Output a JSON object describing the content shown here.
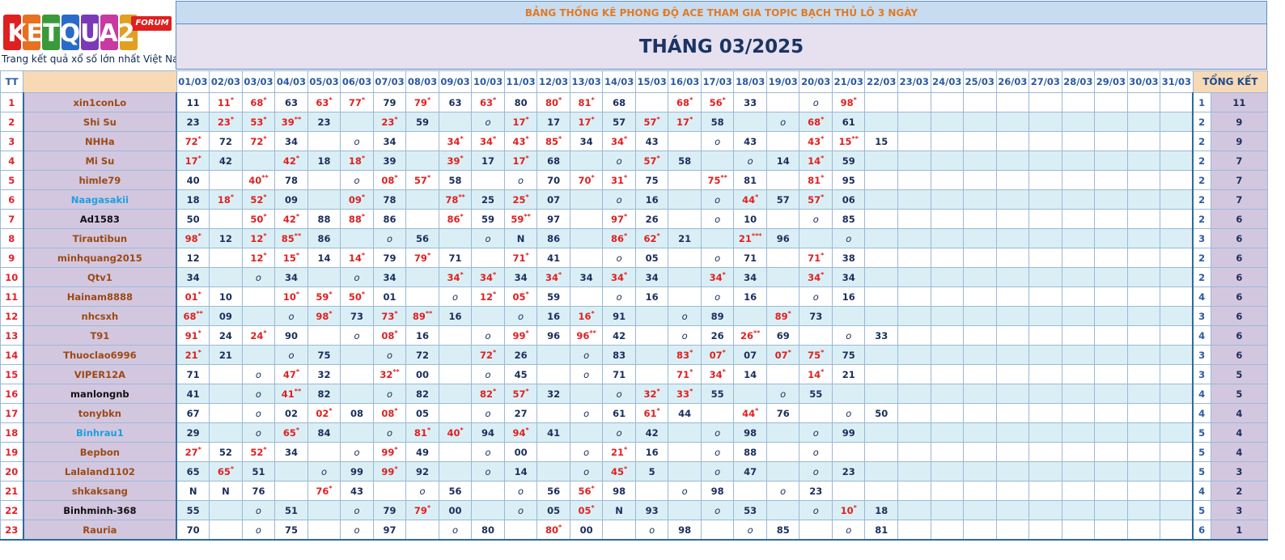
{
  "logo": {
    "brand": "KETQUA2",
    "badge": "FORUM",
    "tagline": "Trang kết quả xổ số lớn nhất Việt Nam"
  },
  "header": {
    "title": "BẢNG THỐNG KÊ PHONG ĐỘ ACE THAM GIA TOPIC BẠCH THỦ LÔ 3 NGÀY",
    "month": "THÁNG 03/2025"
  },
  "columns": {
    "tt": "TT",
    "name": "",
    "total": "TỔNG KẾT",
    "days": [
      "01/03",
      "02/03",
      "03/03",
      "04/03",
      "05/03",
      "06/03",
      "07/03",
      "08/03",
      "09/03",
      "10/03",
      "11/03",
      "12/03",
      "13/03",
      "14/03",
      "15/03",
      "16/03",
      "17/03",
      "18/03",
      "19/03",
      "20/03",
      "21/03",
      "22/03",
      "23/03",
      "24/03",
      "25/03",
      "26/03",
      "27/03",
      "28/03",
      "29/03",
      "30/03",
      "31/03"
    ]
  },
  "rows": [
    {
      "tt": "1",
      "name": "xin1conLo",
      "color": "brown",
      "cells": [
        "11",
        "11*",
        "68*",
        "63",
        "63*",
        "77*",
        "79",
        "79*",
        "63",
        "63*",
        "80",
        "80*",
        "81*",
        "68",
        "",
        "68*",
        "56*",
        "33",
        "",
        "o",
        "98*"
      ],
      "tk": [
        "1",
        "11"
      ]
    },
    {
      "tt": "2",
      "name": "Shi Su",
      "color": "brown",
      "cells": [
        "23",
        "23*",
        "53*",
        "39**",
        "23",
        "",
        "23*",
        "59",
        "",
        "o",
        "17*",
        "17",
        "17*",
        "57",
        "57*",
        "17*",
        "58",
        "",
        "o",
        "68*",
        "61"
      ],
      "tk": [
        "2",
        "9"
      ]
    },
    {
      "tt": "3",
      "name": "NHHa",
      "color": "brown",
      "cells": [
        "72*",
        "72",
        "72*",
        "34",
        "",
        "o",
        "34",
        "",
        "34*",
        "34*",
        "43*",
        "85*",
        "34",
        "34*",
        "43",
        "",
        "o",
        "43",
        "",
        "43*",
        "15**",
        "15"
      ],
      "tk": [
        "2",
        "9"
      ]
    },
    {
      "tt": "4",
      "name": "Mi Su",
      "color": "brown",
      "cells": [
        "17*",
        "42",
        "",
        "42*",
        "18",
        "18*",
        "39",
        "",
        "39*",
        "17",
        "17*",
        "68",
        "",
        "o",
        "57*",
        "58",
        "",
        "o",
        "14",
        "14*",
        "59"
      ],
      "tk": [
        "2",
        "7"
      ]
    },
    {
      "tt": "5",
      "name": "himle79",
      "color": "brown",
      "cells": [
        "40",
        "",
        "40**",
        "78",
        "",
        "o",
        "08*",
        "57*",
        "58",
        "",
        "o",
        "70",
        "70*",
        "31*",
        "75",
        "",
        "75**",
        "81",
        "",
        "81*",
        "95"
      ],
      "tk": [
        "2",
        "7"
      ]
    },
    {
      "tt": "6",
      "name": "Naagasakii",
      "color": "blue",
      "cells": [
        "18",
        "18*",
        "52*",
        "09",
        "",
        "09*",
        "78",
        "",
        "78**",
        "25",
        "25*",
        "07",
        "",
        "o",
        "16",
        "",
        "o",
        "44*",
        "57",
        "57*",
        "06"
      ],
      "tk": [
        "2",
        "7"
      ]
    },
    {
      "tt": "7",
      "name": "Ad1583",
      "color": "black",
      "cells": [
        "50",
        "",
        "50*",
        "42*",
        "88",
        "88*",
        "86",
        "",
        "86*",
        "59",
        "59**",
        "97",
        "",
        "97*",
        "26",
        "",
        "o",
        "10",
        "",
        "o",
        "85"
      ],
      "tk": [
        "2",
        "6"
      ]
    },
    {
      "tt": "8",
      "name": "Tirautibun",
      "color": "brown",
      "cells": [
        "98*",
        "12",
        "12*",
        "85**",
        "86",
        "",
        "o",
        "56",
        "",
        "o",
        "N",
        "86",
        "",
        "86*",
        "62*",
        "21",
        "",
        "21***",
        "96",
        "",
        "o"
      ],
      "tk": [
        "3",
        "6"
      ]
    },
    {
      "tt": "9",
      "name": "minhquang2015",
      "color": "brown",
      "cells": [
        "12",
        "",
        "12*",
        "15*",
        "14",
        "14*",
        "79",
        "79*",
        "71",
        "",
        "71*",
        "41",
        "",
        "o",
        "05",
        "",
        "o",
        "71",
        "",
        "71*",
        "38"
      ],
      "tk": [
        "2",
        "6"
      ]
    },
    {
      "tt": "10",
      "name": "Qtv1",
      "color": "brown",
      "cells": [
        "34",
        "",
        "o",
        "34",
        "",
        "o",
        "34",
        "",
        "34*",
        "34*",
        "34",
        "34*",
        "34",
        "34*",
        "34",
        "",
        "34*",
        "34",
        "",
        "34*",
        "34"
      ],
      "tk": [
        "2",
        "6"
      ]
    },
    {
      "tt": "11",
      "name": "Hainam8888",
      "color": "brown",
      "cells": [
        "01*",
        "10",
        "",
        "10*",
        "59*",
        "50*",
        "01",
        "",
        "o",
        "12*",
        "05*",
        "59",
        "",
        "o",
        "16",
        "",
        "o",
        "16",
        "",
        "o",
        "16"
      ],
      "tk": [
        "4",
        "6"
      ]
    },
    {
      "tt": "12",
      "name": "nhcsxh",
      "color": "brown",
      "cells": [
        "68**",
        "09",
        "",
        "o",
        "98*",
        "73",
        "73*",
        "89**",
        "16",
        "",
        "o",
        "16",
        "16*",
        "91",
        "",
        "o",
        "89",
        "",
        "89*",
        "73",
        ""
      ],
      "tk": [
        "3",
        "6"
      ]
    },
    {
      "tt": "13",
      "name": "T91",
      "color": "brown",
      "cells": [
        "91*",
        "24",
        "24*",
        "90",
        "",
        "o",
        "08*",
        "16",
        "",
        "o",
        "99*",
        "96",
        "96**",
        "42",
        "",
        "o",
        "26",
        "26**",
        "69",
        "",
        "o",
        "33"
      ],
      "tk": [
        "4",
        "6"
      ]
    },
    {
      "tt": "14",
      "name": "Thuoclao6996",
      "color": "brown",
      "cells": [
        "21*",
        "21",
        "",
        "o",
        "75",
        "",
        "o",
        "72",
        "",
        "72*",
        "26",
        "",
        "o",
        "83",
        "",
        "83*",
        "07*",
        "07",
        "07*",
        "75*",
        "75"
      ],
      "tk": [
        "3",
        "6"
      ]
    },
    {
      "tt": "15",
      "name": "VIPER12A",
      "color": "brown",
      "cells": [
        "71",
        "",
        "o",
        "47*",
        "32",
        "",
        "32**",
        "00",
        "",
        "o",
        "45",
        "",
        "o",
        "71",
        "",
        "71*",
        "34*",
        "14",
        "",
        "14*",
        "21"
      ],
      "tk": [
        "3",
        "5"
      ]
    },
    {
      "tt": "16",
      "name": "manlongnb",
      "color": "black",
      "cells": [
        "41",
        "",
        "o",
        "41**",
        "82",
        "",
        "o",
        "82",
        "",
        "82*",
        "57*",
        "32",
        "",
        "o",
        "32*",
        "33*",
        "55",
        "",
        "o",
        "55",
        ""
      ],
      "tk": [
        "4",
        "5"
      ]
    },
    {
      "tt": "17",
      "name": "tonybkn",
      "color": "brown",
      "cells": [
        "67",
        "",
        "o",
        "02",
        "02*",
        "08",
        "08*",
        "05",
        "",
        "o",
        "27",
        "",
        "o",
        "61",
        "61*",
        "44",
        "",
        "44*",
        "76",
        "",
        "o",
        "50"
      ],
      "tk": [
        "4",
        "4"
      ]
    },
    {
      "tt": "18",
      "name": "Binhrau1",
      "color": "blue",
      "cells": [
        "29",
        "",
        "o",
        "65*",
        "84",
        "",
        "o",
        "81*",
        "40*",
        "94",
        "94*",
        "41",
        "",
        "o",
        "42",
        "",
        "o",
        "98",
        "",
        "o",
        "99"
      ],
      "tk": [
        "5",
        "4"
      ]
    },
    {
      "tt": "19",
      "name": "Bepbon",
      "color": "brown",
      "cells": [
        "27*",
        "52",
        "52*",
        "34",
        "",
        "o",
        "99*",
        "49",
        "",
        "o",
        "00",
        "",
        "o",
        "21*",
        "16",
        "",
        "o",
        "88",
        "",
        "o",
        ""
      ],
      "tk": [
        "5",
        "4"
      ]
    },
    {
      "tt": "20",
      "name": "Lalaland1102",
      "color": "brown",
      "cells": [
        "65",
        "65*",
        "51",
        "",
        "o",
        "99",
        "99*",
        "92",
        "",
        "o",
        "14",
        "",
        "o",
        "45*",
        "5",
        "",
        "o",
        "47",
        "",
        "o",
        "23"
      ],
      "tk": [
        "5",
        "3"
      ]
    },
    {
      "tt": "21",
      "name": "shkaksang",
      "color": "brown",
      "cells": [
        "N",
        "N",
        "76",
        "",
        "76*",
        "43",
        "",
        "o",
        "56",
        "",
        "o",
        "56",
        "56*",
        "98",
        "",
        "o",
        "98",
        "",
        "o",
        "23",
        ""
      ],
      "tk": [
        "4",
        "2"
      ]
    },
    {
      "tt": "22",
      "name": "Binhminh-368",
      "color": "black",
      "cells": [
        "55",
        "",
        "o",
        "51",
        "",
        "o",
        "79",
        "79*",
        "00",
        "",
        "o",
        "05",
        "05*",
        "N",
        "93",
        "",
        "o",
        "53",
        "",
        "o",
        "10*",
        "18"
      ],
      "tk": [
        "5",
        "3"
      ]
    },
    {
      "tt": "23",
      "name": "Rauria",
      "color": "brown",
      "cells": [
        "70",
        "",
        "o",
        "75",
        "",
        "o",
        "97",
        "",
        "o",
        "80",
        "",
        "80*",
        "00",
        "",
        "o",
        "98",
        "",
        "o",
        "85",
        "",
        "o",
        "81"
      ],
      "tk": [
        "6",
        "1"
      ]
    }
  ]
}
